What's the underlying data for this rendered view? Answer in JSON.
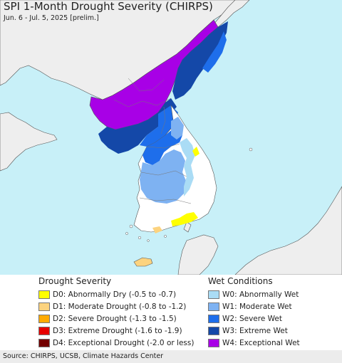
{
  "header": {
    "title": "SPI 1-Month Drought Severity (CHIRPS)",
    "subtitle": "Jun. 6 - Jul. 5, 2025 [prelim.]"
  },
  "legend": {
    "drought_title": "Drought Severity",
    "drought_items": [
      {
        "label": "D0: Abnormally Dry (-0.5 to -0.7)",
        "color": "#ffff00"
      },
      {
        "label": "D1: Moderate Drought (-0.8 to -1.2)",
        "color": "#fcd37f"
      },
      {
        "label": "D2: Severe Drought (-1.3 to -1.5)",
        "color": "#ffaa00"
      },
      {
        "label": "D3: Extreme Drought (-1.6 to -1.9)",
        "color": "#e60000"
      },
      {
        "label": "D4: Exceptional Drought (-2.0 or less)",
        "color": "#730000"
      }
    ],
    "wet_title": "Wet Conditions",
    "wet_items": [
      {
        "label": "W0: Abnormally Wet",
        "color": "#aadcf5"
      },
      {
        "label": "W1: Moderate Wet",
        "color": "#7eb2f2"
      },
      {
        "label": "W2: Severe Wet",
        "color": "#1e6eeb"
      },
      {
        "label": "W3: Extreme Wet",
        "color": "#1448a8"
      },
      {
        "label": "W4: Exceptional Wet",
        "color": "#a800e6"
      }
    ]
  },
  "footer": {
    "source": "Source: CHIRPS, UCSB, Climate Hazards Center"
  },
  "colors": {
    "sea": "#c8f0f8",
    "land_outside": "#eeeeee",
    "land_normal": "#ffffff",
    "border": "#555555"
  }
}
